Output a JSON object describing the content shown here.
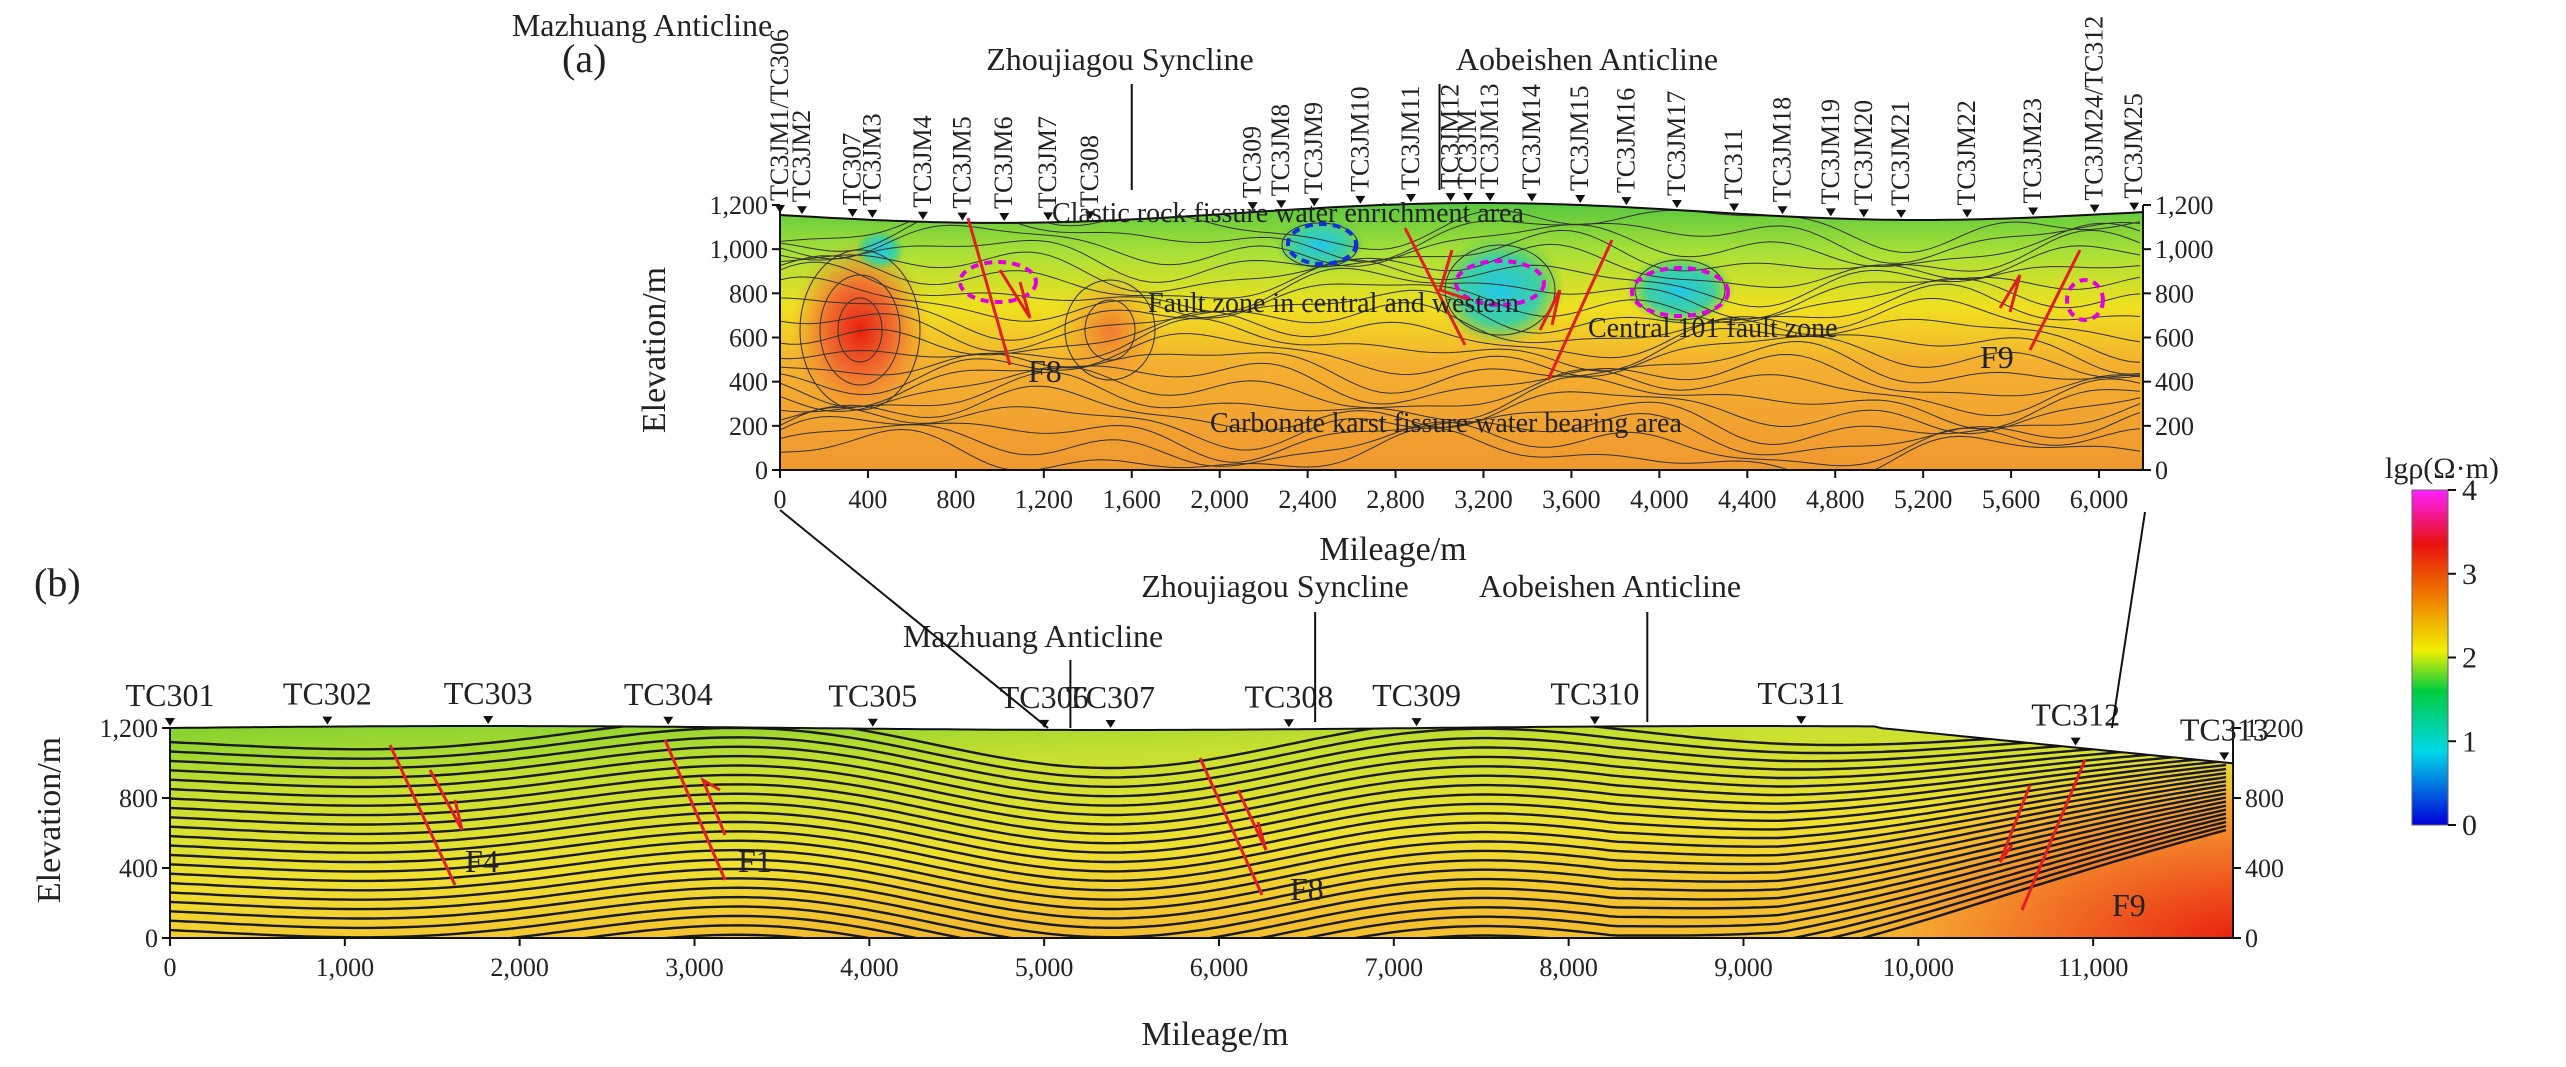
{
  "chart_data": [
    {
      "panel_label": "(a)",
      "type": "heatmap",
      "xlabel": "Mileage/m",
      "ylabel": "Elevation/m",
      "xlim": [
        0,
        6200
      ],
      "ylim": [
        0,
        1200
      ],
      "x_ticks": [
        0,
        400,
        800,
        1200,
        1600,
        2000,
        2400,
        2800,
        3200,
        3600,
        4000,
        4400,
        4800,
        5200,
        5600,
        6000
      ],
      "x_tick_labels": [
        "0",
        "400",
        "800",
        "1,200",
        "1,600",
        "2,000",
        "2,400",
        "2,800",
        "3,200",
        "3,600",
        "4,000",
        "4,400",
        "4,800",
        "5,200",
        "5,600",
        "6,000"
      ],
      "y_ticks": [
        0,
        200,
        400,
        600,
        800,
        1000,
        1200
      ],
      "y_tick_labels": [
        "0",
        "200",
        "400",
        "600",
        "800",
        "1,000",
        "1,200"
      ],
      "structures": [
        {
          "label": "Mazhuang Anticline",
          "x": 1050
        },
        {
          "label": "Zhoujiagou Syncline",
          "x": 1600
        },
        {
          "label": "Aobeishen Anticline",
          "x": 3000
        }
      ],
      "stations": [
        {
          "label": "TC3JM1/TC306",
          "x": 0
        },
        {
          "label": "TC3JM2",
          "x": 100
        },
        {
          "label": "TC307",
          "x": 330
        },
        {
          "label": "TC3JM3",
          "x": 420
        },
        {
          "label": "TC3JM4",
          "x": 650
        },
        {
          "label": "TC3JM5",
          "x": 830
        },
        {
          "label": "TC3JM6",
          "x": 1020
        },
        {
          "label": "TC3JM7",
          "x": 1220
        },
        {
          "label": "TC308",
          "x": 1410
        },
        {
          "label": "TC309",
          "x": 2150
        },
        {
          "label": "TC3JM8",
          "x": 2280
        },
        {
          "label": "TC3JM9",
          "x": 2430
        },
        {
          "label": "TC3JM10",
          "x": 2640
        },
        {
          "label": "TC3JM11",
          "x": 2870
        },
        {
          "label": "TC3JM12",
          "x": 3050
        },
        {
          "label": "TC3JM",
          "x": 3130
        },
        {
          "label": "TC3JM13",
          "x": 3230
        },
        {
          "label": "TC3JM14",
          "x": 3420
        },
        {
          "label": "TC3JM15",
          "x": 3640
        },
        {
          "label": "TC3JM16",
          "x": 3850
        },
        {
          "label": "TC3JM17",
          "x": 4080
        },
        {
          "label": "TC311",
          "x": 4340
        },
        {
          "label": "TC3JM18",
          "x": 4560
        },
        {
          "label": "TC3JM19",
          "x": 4780
        },
        {
          "label": "TC3JM20",
          "x": 4930
        },
        {
          "label": "TC3JM21",
          "x": 5100
        },
        {
          "label": "TC3JM22",
          "x": 5400
        },
        {
          "label": "TC3JM23",
          "x": 5700
        },
        {
          "label": "TC3JM24/TC312",
          "x": 5980
        },
        {
          "label": "TC3JM25",
          "x": 6160
        }
      ],
      "faults": [
        "F8",
        "F9"
      ],
      "annotations": [
        "Clastic rock fissure water enrichment area",
        "Fault zone in central and western",
        "Central 101 fault zone",
        "Carbonate karst fissure water bearing area"
      ]
    },
    {
      "panel_label": "(b)",
      "type": "heatmap",
      "xlabel": "Mileage/m",
      "ylabel": "Elevation/m",
      "xlim": [
        0,
        11800
      ],
      "ylim": [
        0,
        1200
      ],
      "x_ticks": [
        0,
        1000,
        2000,
        3000,
        4000,
        5000,
        6000,
        7000,
        8000,
        9000,
        10000,
        11000
      ],
      "x_tick_labels": [
        "0",
        "1,000",
        "2,000",
        "3,000",
        "4,000",
        "5,000",
        "6,000",
        "7,000",
        "8,000",
        "9,000",
        "10,000",
        "11,000"
      ],
      "y_ticks": [
        0,
        400,
        800,
        1200
      ],
      "y_tick_labels": [
        "0",
        "400",
        "800",
        "1,200"
      ],
      "structures": [
        {
          "label": "Mazhuang Anticline",
          "x": 5150
        },
        {
          "label": "Zhoujiagou Syncline",
          "x": 6550
        },
        {
          "label": "Aobeishen Anticline",
          "x": 8450
        }
      ],
      "stations": [
        {
          "label": "TC301",
          "x": 0
        },
        {
          "label": "TC302",
          "x": 900
        },
        {
          "label": "TC303",
          "x": 1820
        },
        {
          "label": "TC304",
          "x": 2850
        },
        {
          "label": "TC305",
          "x": 4020
        },
        {
          "label": "TC306",
          "x": 5000
        },
        {
          "label": "TC307",
          "x": 5380
        },
        {
          "label": "TC308",
          "x": 6400
        },
        {
          "label": "TC309",
          "x": 7130
        },
        {
          "label": "TC310",
          "x": 8150
        },
        {
          "label": "TC311",
          "x": 9330
        },
        {
          "label": "TC312",
          "x": 10900
        },
        {
          "label": "TC313",
          "x": 11750
        }
      ],
      "faults": [
        "F4",
        "F1",
        "F8",
        "F9"
      ]
    }
  ],
  "colorbar": {
    "label": "lgρ(Ω·m)",
    "min": 0,
    "max": 4,
    "ticks": [
      "0",
      "1",
      "2",
      "3",
      "4"
    ],
    "colors": [
      "#0000d8",
      "#00d8e8",
      "#00cc40",
      "#f0f000",
      "#f07000",
      "#e81010",
      "#ff20ff"
    ]
  }
}
